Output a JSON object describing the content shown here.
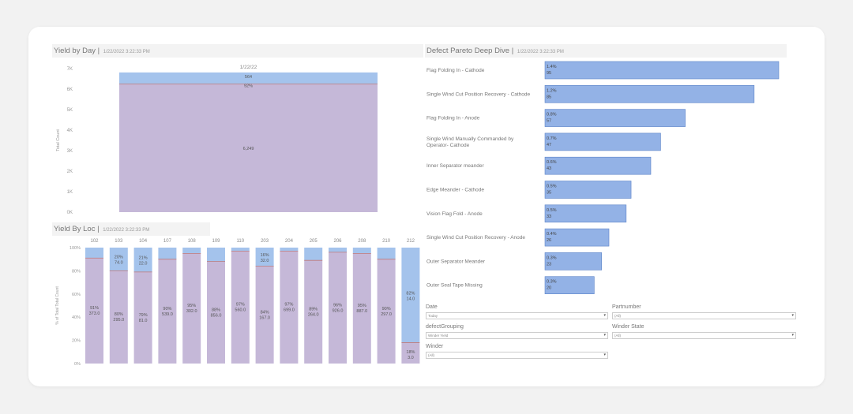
{
  "colors": {
    "purple": "#c5b8d8",
    "blue": "#a4c3ec",
    "pareto": "#93b2e6",
    "line": "#c07a7a"
  },
  "yield_by_day": {
    "title": "Yield by Day",
    "timestamp": "1/22/2022 3:22:33 PM"
  },
  "yield_by_loc": {
    "title": "Yield By Loc",
    "timestamp": "1/22/2022 3:22:33 PM"
  },
  "pareto": {
    "title": "Defect Pareto Deep Dive",
    "timestamp": "1/22/2022 3:22:33 PM"
  },
  "filters": [
    {
      "label": "Date",
      "value": "Today"
    },
    {
      "label": "Partnumber",
      "value": "(All)"
    },
    {
      "label": "defectGrouping",
      "value": "Winder Yield"
    },
    {
      "label": "Winder State",
      "value": "(All)"
    },
    {
      "label": "Winder",
      "value": "(All)"
    }
  ],
  "chart_data": [
    {
      "type": "bar",
      "title": "Yield by Day",
      "categories": [
        "1/22/22"
      ],
      "series": [
        {
          "name": "pass",
          "values": [
            6249
          ],
          "label": "6,249"
        },
        {
          "name": "fail",
          "values": [
            564
          ],
          "label": "564",
          "pct_label": "92%"
        }
      ],
      "ylabel": "Total Count",
      "yticks": [
        "0K",
        "1K",
        "2K",
        "3K",
        "4K",
        "5K",
        "6K",
        "7K"
      ],
      "ylim": [
        0,
        7000
      ]
    },
    {
      "type": "bar",
      "title": "Yield By Loc",
      "ylabel": "% of Total Total Count",
      "yticks": [
        "0%",
        "20%",
        "40%",
        "60%",
        "80%",
        "100%"
      ],
      "ylim": [
        0,
        100
      ],
      "categories": [
        "102",
        "103",
        "104",
        "107",
        "108",
        "109",
        "110",
        "203",
        "204",
        "205",
        "206",
        "208",
        "210",
        "212"
      ],
      "pass_pct": [
        91,
        80,
        79,
        90,
        95,
        88,
        97,
        84,
        97,
        89,
        96,
        95,
        90,
        18
      ],
      "pass_labels": [
        [
          "91%",
          "373.0"
        ],
        [
          "80%",
          "295.0"
        ],
        [
          "79%",
          "81.0"
        ],
        [
          "90%",
          "539.0"
        ],
        [
          "95%",
          "302.0"
        ],
        [
          "88%",
          "856.0"
        ],
        [
          "97%",
          "560.0"
        ],
        [
          "84%",
          "167.0"
        ],
        [
          "97%",
          "699.0"
        ],
        [
          "89%",
          "264.0"
        ],
        [
          "96%",
          "926.0"
        ],
        [
          "95%",
          "887.0"
        ],
        [
          "90%",
          "297.0"
        ],
        [
          "18%",
          "3.0"
        ]
      ],
      "fail_labels": [
        null,
        [
          "20%",
          "74.0"
        ],
        [
          "21%",
          "22.0"
        ],
        null,
        null,
        null,
        null,
        [
          "16%",
          "32.0"
        ],
        null,
        null,
        null,
        null,
        null,
        [
          "82%",
          "14.0"
        ]
      ]
    },
    {
      "type": "bar",
      "orientation": "horizontal",
      "title": "Defect Pareto Deep Dive",
      "categories": [
        "Flag Folding In - Cathode",
        "Single Wind Cut Position Recovery - Cathode",
        "Flag Folding In - Anode",
        "Single Wind Manually Commanded by Operator- Cathode",
        "Inner Separator meander",
        "Edge Meander - Cathode",
        "Vision Flag Fold - Anode",
        "Single Wind Cut Position Recovery - Anode",
        "Outer Separator Meander",
        "Outer Seal Tape Missing"
      ],
      "values": [
        95,
        85,
        57,
        47,
        43,
        35,
        33,
        26,
        23,
        20
      ],
      "pct_labels": [
        "1.4%",
        "1.2%",
        "0.8%",
        "0.7%",
        "0.6%",
        "0.5%",
        "0.5%",
        "0.4%",
        "0.3%",
        "0.3%"
      ]
    }
  ]
}
